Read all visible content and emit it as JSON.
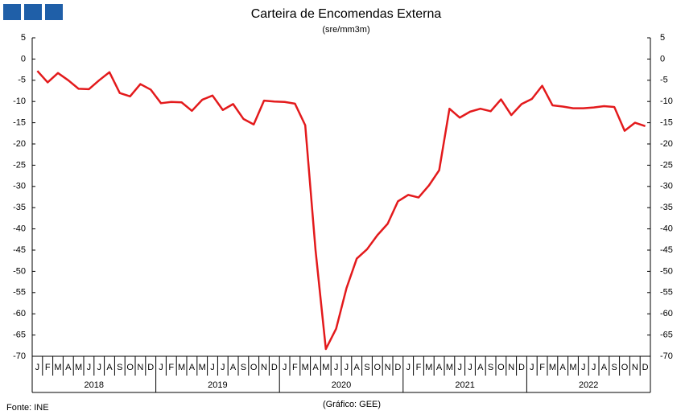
{
  "chart_data": {
    "type": "line",
    "title": "Carteira de Encomendas Externa",
    "subtitle": "(sre/mm3m)",
    "source": "Fonte: INE",
    "credit": "(Gráfico: GEE)",
    "categories": [
      "J",
      "F",
      "M",
      "A",
      "M",
      "J",
      "J",
      "A",
      "S",
      "O",
      "N",
      "D",
      "J",
      "F",
      "M",
      "A",
      "M",
      "J",
      "J",
      "A",
      "S",
      "O",
      "N",
      "D",
      "J",
      "F",
      "M",
      "A",
      "M",
      "J",
      "J",
      "A",
      "S",
      "O",
      "N",
      "D",
      "J",
      "F",
      "M",
      "A",
      "M",
      "J",
      "J",
      "A",
      "S",
      "O",
      "N",
      "D",
      "J",
      "F",
      "M",
      "A",
      "M",
      "J",
      "J",
      "A",
      "S",
      "O",
      "N",
      "D"
    ],
    "years": [
      "2018",
      "2019",
      "2020",
      "2021",
      "2022"
    ],
    "series": [
      {
        "color": "#e31a1c",
        "values": [
          -2.8,
          -5.5,
          -3.3,
          -5,
          -7,
          -7.1,
          -5,
          -3.1,
          -8,
          -8.8,
          -5.9,
          -7.2,
          -10.4,
          -10.1,
          -10.2,
          -12.2,
          -9.6,
          -8.6,
          -12,
          -10.6,
          -14.1,
          -15.4,
          -9.8,
          -10,
          -10.1,
          -10.5,
          -15.6,
          -45,
          -68.3,
          -63.5,
          -54,
          -47,
          -44.8,
          -41.5,
          -38.8,
          -33.5,
          -32,
          -32.6,
          -29.8,
          -26.2,
          -11.7,
          -13.8,
          -12.4,
          -11.7,
          -12.3,
          -9.5,
          -13.2,
          -10.6,
          -9.4,
          -6.3,
          -10.9,
          -11.2,
          -11.6,
          -11.6,
          -11.4,
          -11.1,
          -11.3,
          -16.9,
          -15,
          -15.8
        ]
      }
    ],
    "ylim": [
      -70,
      5
    ],
    "yticks": [
      5,
      0,
      -5,
      -10,
      -15,
      -20,
      -25,
      -30,
      -35,
      -40,
      -45,
      -50,
      -55,
      -60,
      -65,
      -70
    ],
    "y2lim": [
      -70,
      5
    ],
    "y2ticks": [
      5,
      0,
      -5,
      -10,
      -15,
      -20,
      -25,
      -30,
      -35,
      -40,
      -45,
      -50,
      -55,
      -60,
      -65,
      -70
    ],
    "grid": false
  }
}
